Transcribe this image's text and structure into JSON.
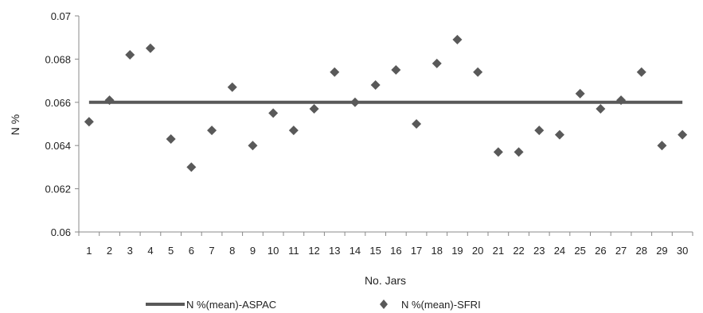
{
  "chart_data": {
    "type": "scatter",
    "xlabel": "No. Jars",
    "ylabel": "N %",
    "ylim": [
      0.06,
      0.07
    ],
    "yticks": [
      "0.06",
      "0.062",
      "0.064",
      "0.066",
      "0.068",
      "0.07"
    ],
    "x": [
      1,
      2,
      3,
      4,
      5,
      6,
      7,
      8,
      9,
      10,
      11,
      12,
      13,
      14,
      15,
      16,
      17,
      18,
      19,
      20,
      21,
      22,
      23,
      24,
      25,
      26,
      27,
      28,
      29,
      30
    ],
    "grid": false,
    "legend_position": "bottom",
    "series": [
      {
        "name": "N %(mean)-ASPAC",
        "type": "line",
        "color": "#595959",
        "values": [
          0.066,
          0.066,
          0.066,
          0.066,
          0.066,
          0.066,
          0.066,
          0.066,
          0.066,
          0.066,
          0.066,
          0.066,
          0.066,
          0.066,
          0.066,
          0.066,
          0.066,
          0.066,
          0.066,
          0.066,
          0.066,
          0.066,
          0.066,
          0.066,
          0.066,
          0.066,
          0.066,
          0.066,
          0.066,
          0.066
        ]
      },
      {
        "name": "N %(mean)-SFRI",
        "type": "scatter",
        "marker": "diamond",
        "color": "#595959",
        "values": [
          0.0651,
          0.0661,
          0.0682,
          0.0685,
          0.0643,
          0.063,
          0.0647,
          0.0667,
          0.064,
          0.0655,
          0.0647,
          0.0657,
          0.0674,
          0.066,
          0.0668,
          0.0675,
          0.065,
          0.0678,
          0.0689,
          0.0674,
          0.0637,
          0.0637,
          0.0647,
          0.0645,
          0.0664,
          0.0657,
          0.0661,
          0.0674,
          0.064,
          0.0645
        ]
      }
    ]
  }
}
